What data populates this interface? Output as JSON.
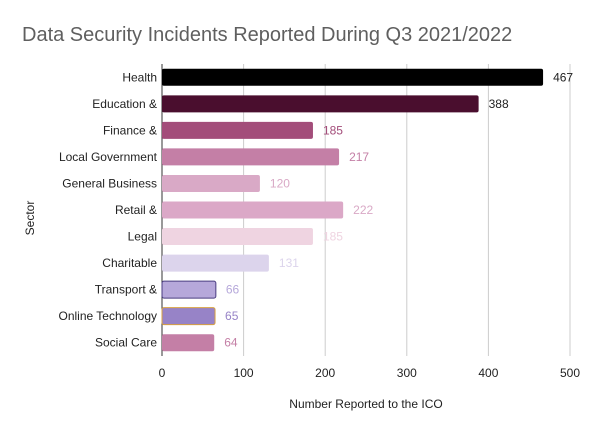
{
  "chart_data": {
    "type": "bar",
    "orientation": "horizontal",
    "title": "Data Security Incidents Reported During Q3 2021/2022",
    "xlabel": "Number Reported to the ICO",
    "ylabel": "Sector",
    "xlim": [
      0,
      500
    ],
    "xticks": [
      0,
      100,
      200,
      300,
      400,
      500
    ],
    "grid": true,
    "categories": [
      "Health",
      "Education &",
      "Finance &",
      "Local Government",
      "General Business",
      "Retail &",
      "Legal",
      "Charitable",
      "Transport &",
      "Online Technology",
      "Social Care"
    ],
    "values": [
      467,
      388,
      185,
      217,
      120,
      222,
      185,
      131,
      66,
      65,
      64
    ],
    "colors": [
      "#000000",
      "#4a0e2e",
      "#a34d7a",
      "#c47fa6",
      "#d9a9c6",
      "#dba8c7",
      "#efd4e1",
      "#dcd4ec",
      "#b6a8da",
      "#9783c7",
      "#c47fa6"
    ],
    "label_colors": [
      "#222222",
      "#222222",
      "#a34d7a",
      "#c47fa6",
      "#d9a9c6",
      "#d9a9c6",
      "#efd4e1",
      "#dcd4ec",
      "#b6a8da",
      "#9783c7",
      "#c47fa6"
    ],
    "outline_colors": [
      "",
      "",
      "",
      "",
      "",
      "",
      "",
      "",
      "#4a3d80",
      "#d8a040",
      ""
    ]
  }
}
